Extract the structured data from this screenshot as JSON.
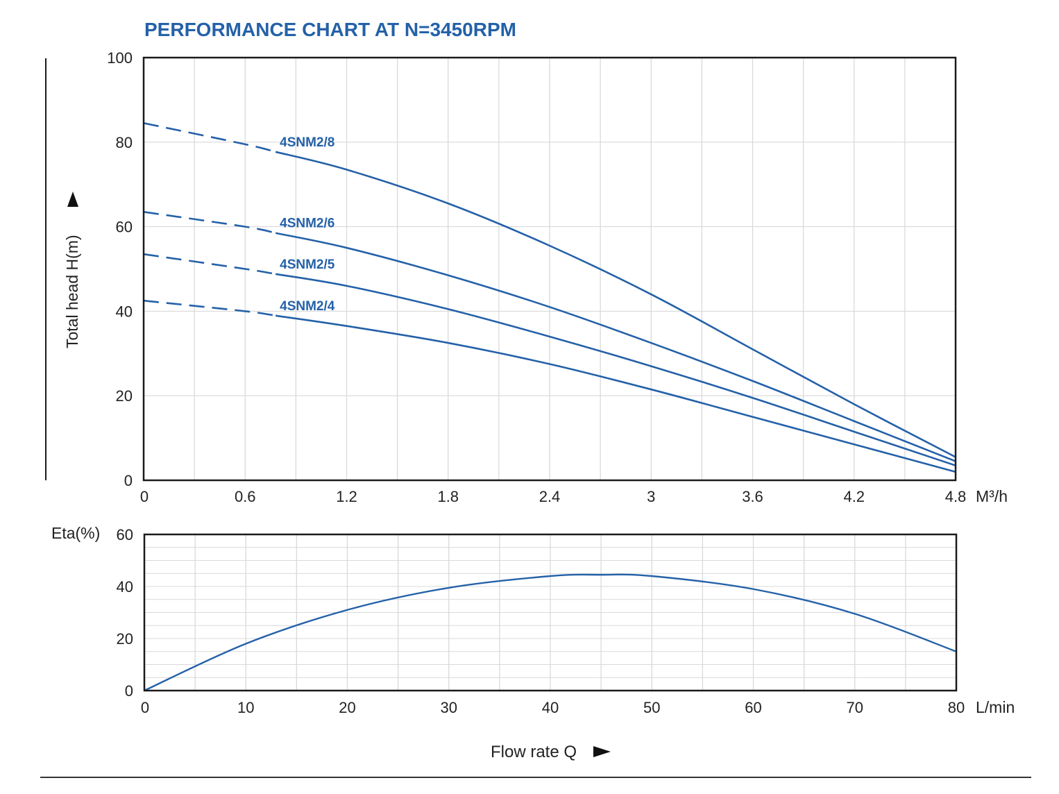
{
  "colors": {
    "curve": "#2461a8",
    "title": "#2461a8",
    "frame": "#1a1a1a",
    "grid": "#d9d9d9",
    "text": "#222222"
  },
  "chart_data": [
    {
      "type": "line",
      "title": "PERFORMANCE CHART AT N=3450RPM",
      "xlabel": "M³/h",
      "ylabel": "Total head H(m)",
      "xlim": [
        0,
        4.8
      ],
      "ylim": [
        0,
        100
      ],
      "x_ticks": [
        "0",
        "0.6",
        "1.2",
        "1.8",
        "2.4",
        "3",
        "3.6",
        "4.2",
        "4.8"
      ],
      "y_ticks": [
        "0",
        "20",
        "40",
        "60",
        "80",
        "100"
      ],
      "grid": true,
      "dashed_until_x": 0.78,
      "series": [
        {
          "name": "4SNM2/8",
          "x": [
            0,
            0.6,
            1.2,
            1.8,
            2.4,
            3.0,
            3.6,
            4.2,
            4.8
          ],
          "y": [
            84.5,
            79.5,
            73.5,
            65.5,
            55.5,
            44,
            31,
            18,
            5.5
          ]
        },
        {
          "name": "4SNM2/6",
          "x": [
            0,
            0.6,
            1.2,
            1.8,
            2.4,
            3.0,
            3.6,
            4.2,
            4.8
          ],
          "y": [
            63.5,
            60,
            55,
            48.5,
            41,
            32.5,
            23.5,
            14,
            4.5
          ]
        },
        {
          "name": "4SNM2/5",
          "x": [
            0,
            0.6,
            1.2,
            1.8,
            2.4,
            3.0,
            3.6,
            4.2,
            4.8
          ],
          "y": [
            53.5,
            50,
            46,
            40.5,
            34,
            27,
            19.5,
            11.5,
            3.5
          ]
        },
        {
          "name": "4SNM2/4",
          "x": [
            0,
            0.6,
            1.2,
            1.8,
            2.4,
            3.0,
            3.6,
            4.2,
            4.8
          ],
          "y": [
            42.5,
            40,
            36.5,
            32.5,
            27.5,
            21.5,
            15,
            8.5,
            2
          ]
        }
      ]
    },
    {
      "type": "line",
      "xlabel": "L/min",
      "ylabel": "Eta(%)",
      "xlim": [
        0,
        80
      ],
      "ylim": [
        0,
        60
      ],
      "x_ticks": [
        "0",
        "10",
        "20",
        "30",
        "40",
        "50",
        "60",
        "70",
        "80"
      ],
      "y_ticks": [
        "0",
        "20",
        "40",
        "60"
      ],
      "grid": true,
      "series": [
        {
          "x": [
            0,
            10,
            20,
            30,
            40,
            45,
            50,
            60,
            70,
            80
          ],
          "y": [
            0,
            18,
            31,
            39.5,
            44,
            44.5,
            44,
            39,
            29.5,
            15
          ]
        }
      ]
    }
  ],
  "footer": {
    "flow_label": "Flow rate Q"
  }
}
